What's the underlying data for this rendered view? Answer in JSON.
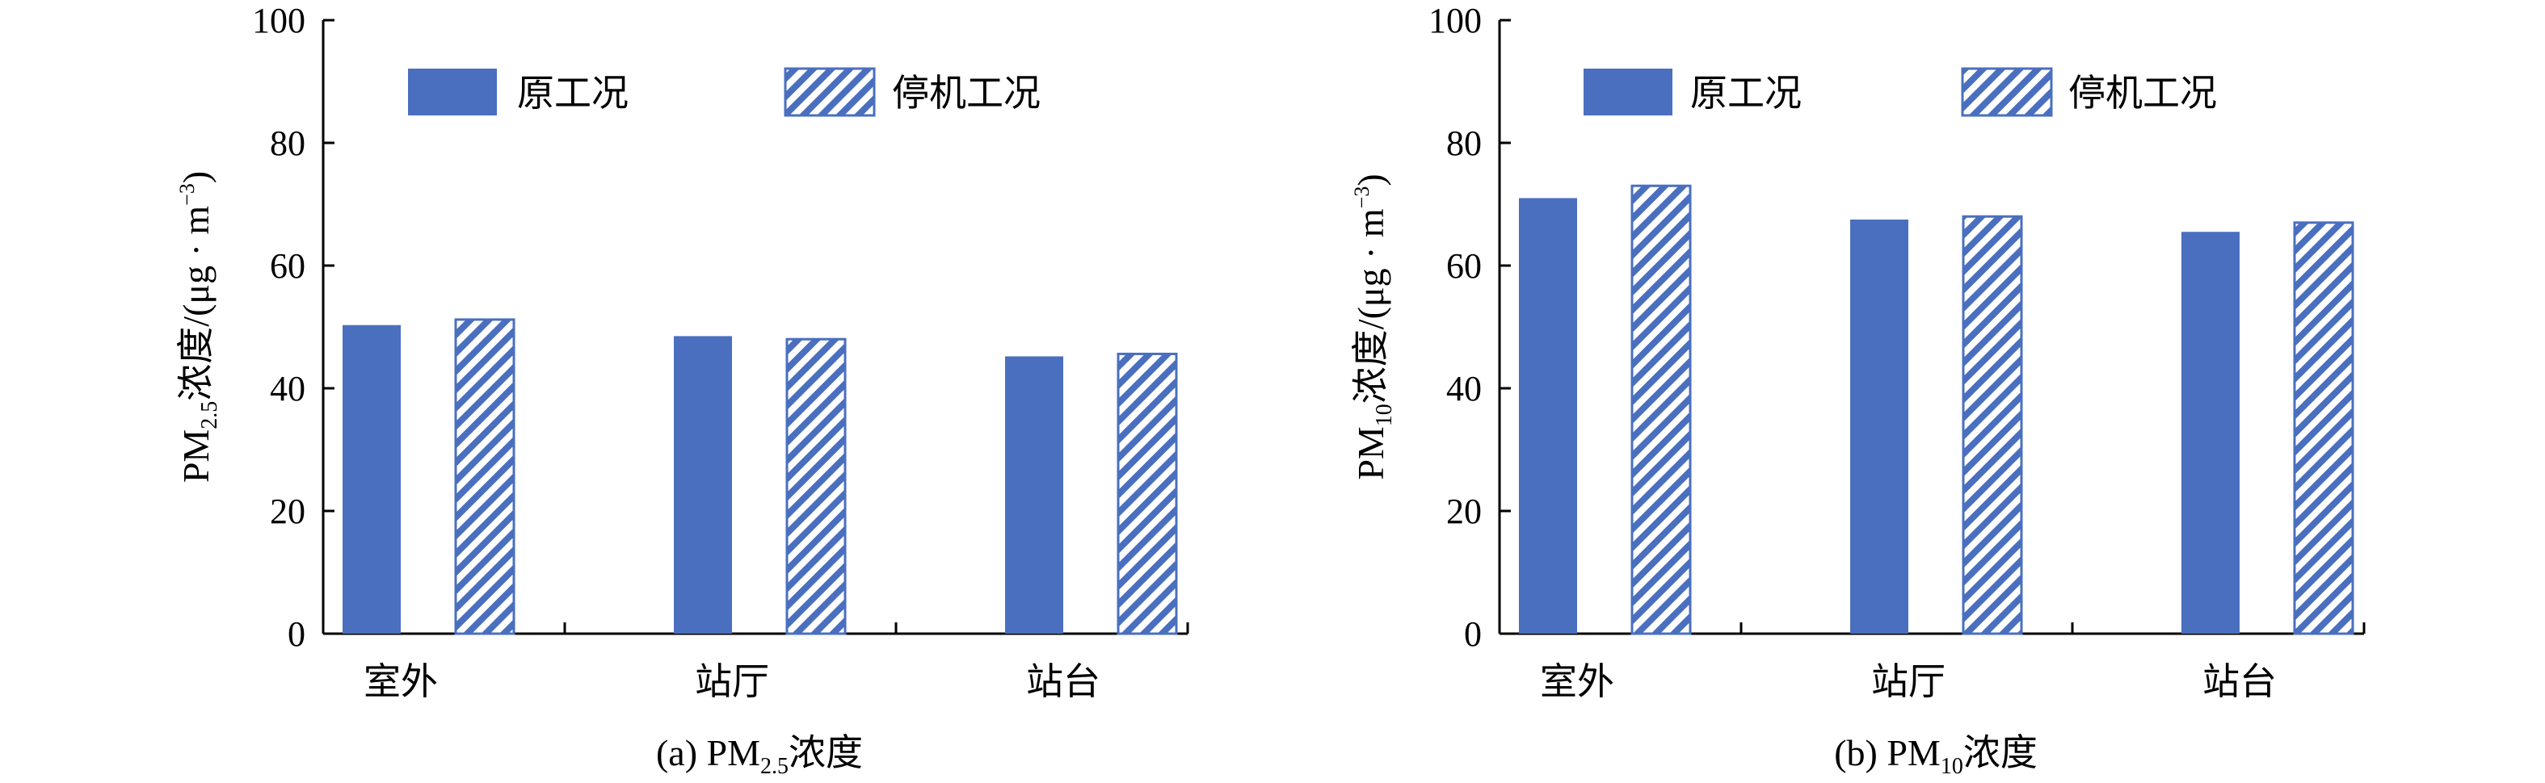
{
  "chart_data": [
    {
      "type": "bar",
      "caption": {
        "prefix": "(a) PM",
        "sub": "2.5",
        "suffix": "浓度"
      },
      "ylabel": {
        "prefix": "PM",
        "sub": "2.5",
        "mid": "浓度/(μg · m",
        "sup": "−3",
        "suffix": ")"
      },
      "categories": [
        "室外",
        "站厅",
        "站台"
      ],
      "series": [
        {
          "name": "原工况",
          "values": [
            50.3,
            48.5,
            45.2
          ],
          "style": "solid"
        },
        {
          "name": "停机工况",
          "values": [
            51.2,
            48.0,
            45.6
          ],
          "style": "hatched"
        }
      ],
      "ylim": [
        0,
        100
      ],
      "yticks": [
        0,
        20,
        40,
        60,
        80,
        100
      ],
      "legend_position": "top",
      "grid": false
    },
    {
      "type": "bar",
      "caption": {
        "prefix": "(b) PM",
        "sub": "10",
        "suffix": "浓度"
      },
      "ylabel": {
        "prefix": "PM",
        "sub": "10",
        "mid": "浓度/(μg · m",
        "sup": "−3",
        "suffix": ")"
      },
      "categories": [
        "室外",
        "站厅",
        "站台"
      ],
      "series": [
        {
          "name": "原工况",
          "values": [
            71.0,
            67.5,
            65.5
          ],
          "style": "solid"
        },
        {
          "name": "停机工况",
          "values": [
            73.0,
            68.0,
            67.0
          ],
          "style": "hatched"
        }
      ],
      "ylim": [
        0,
        100
      ],
      "yticks": [
        0,
        20,
        40,
        60,
        80,
        100
      ],
      "legend_position": "top",
      "grid": false
    }
  ],
  "colors": {
    "bar": "#4a6fbf",
    "axis": "#000000",
    "background": "#ffffff"
  }
}
